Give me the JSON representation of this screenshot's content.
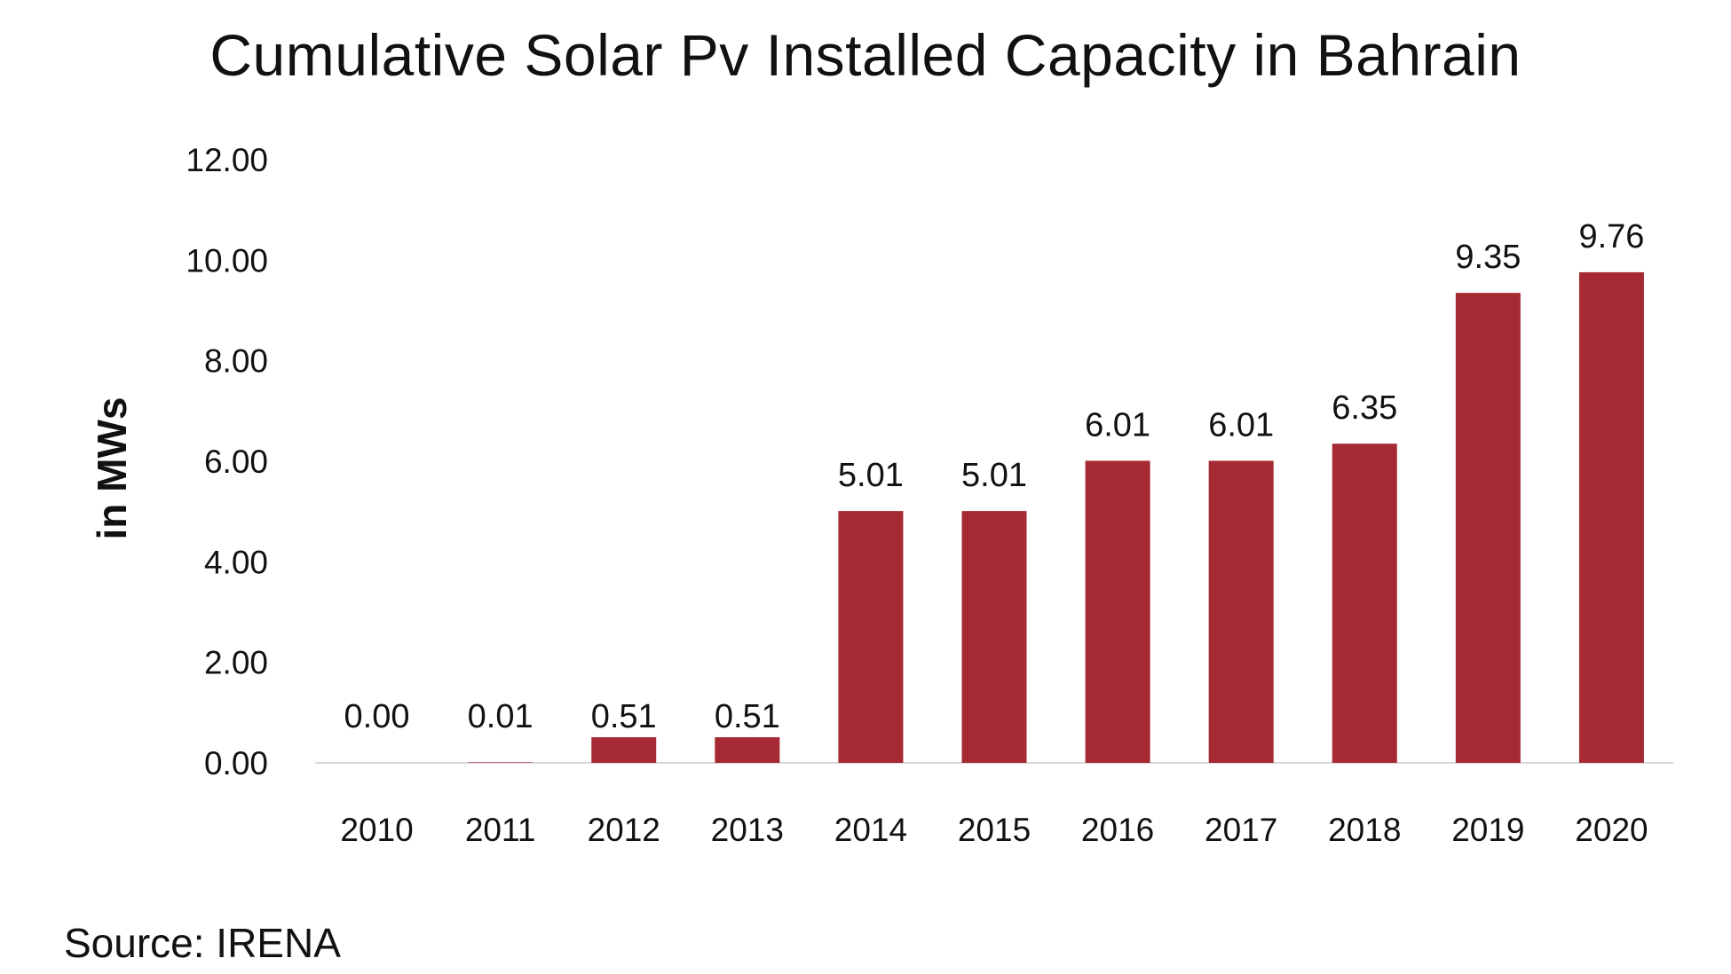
{
  "chart_data": {
    "type": "bar",
    "title": "Cumulative Solar Pv Installed Capacity in Bahrain",
    "ylabel": "in MWs",
    "xlabel": "",
    "categories": [
      "2010",
      "2011",
      "2012",
      "2013",
      "2014",
      "2015",
      "2016",
      "2017",
      "2018",
      "2019",
      "2020"
    ],
    "values": [
      0.0,
      0.01,
      0.51,
      0.51,
      5.01,
      5.01,
      6.01,
      6.01,
      6.35,
      9.35,
      9.76
    ],
    "data_labels": [
      "0.00",
      "0.01",
      "0.51",
      "0.51",
      "5.01",
      "5.01",
      "6.01",
      "6.01",
      "6.35",
      "9.35",
      "9.76"
    ],
    "y_ticks": [
      "0.00",
      "2.00",
      "4.00",
      "6.00",
      "8.00",
      "10.00",
      "12.00"
    ],
    "ylim": [
      0,
      12
    ],
    "grid": false,
    "legend": "none",
    "bar_color": "#A52A33",
    "baseline_color": "#D9D9D9"
  },
  "source": "Source: IRENA"
}
